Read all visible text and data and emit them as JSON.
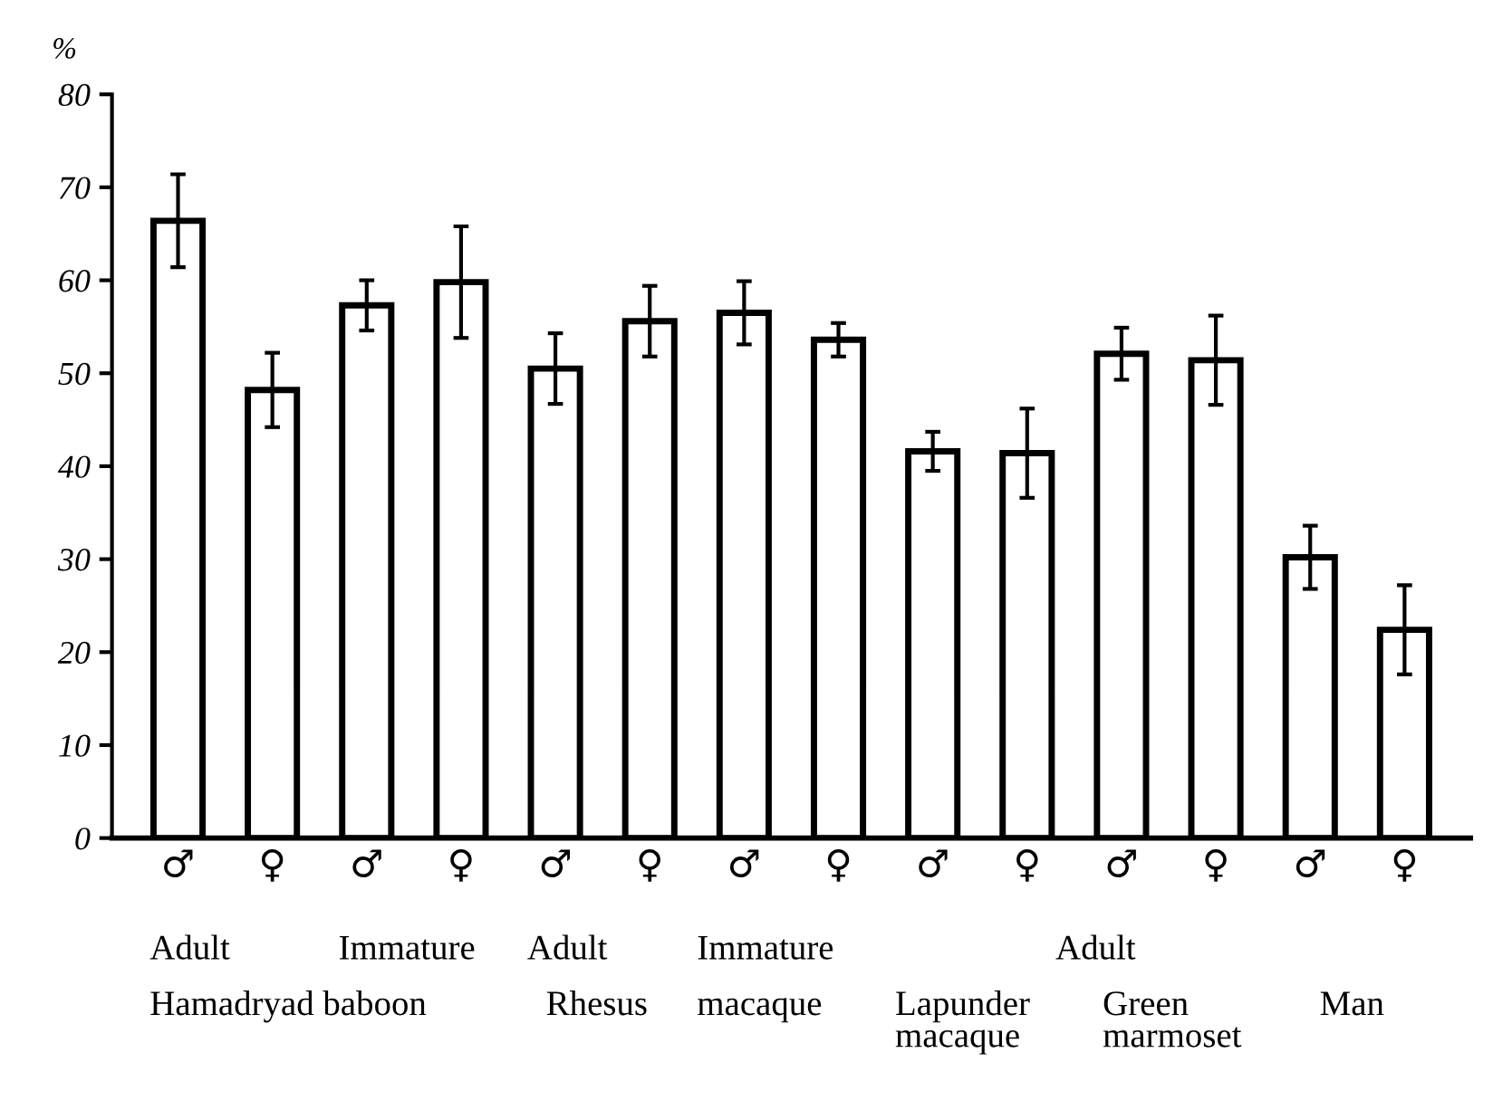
{
  "chart_data": {
    "type": "bar",
    "ylabel": "%",
    "categories": [
      "♂",
      "♀",
      "♂",
      "♀",
      "♂",
      "♀",
      "♂",
      "♀",
      "♂",
      "♀",
      "♂",
      "♀",
      "♂",
      "♀"
    ],
    "values": [
      66.4,
      48.2,
      57.3,
      59.8,
      50.5,
      55.6,
      56.5,
      53.6,
      41.6,
      41.4,
      52.1,
      51.4,
      30.2,
      22.4
    ],
    "errors": [
      5,
      4,
      2.7,
      6,
      3.8,
      3.8,
      3.4,
      1.8,
      2.1,
      4.8,
      2.8,
      4.8,
      3.4,
      4.8
    ],
    "color": "#ffffff",
    "ylim": [
      0,
      80
    ],
    "yticks": [
      0,
      10,
      20,
      30,
      40,
      50,
      60,
      70,
      80
    ],
    "grid": false,
    "annotations": [
      "Adult",
      "Immature",
      "Adult",
      "Immature",
      "Adult",
      "Hamadryad baboon",
      "Rhesus",
      "macaque",
      "Lapunder\nmacaque",
      "Green\nmarmoset",
      "Man"
    ]
  }
}
